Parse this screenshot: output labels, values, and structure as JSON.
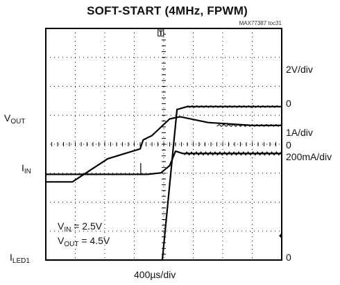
{
  "chart_data": {
    "type": "line",
    "title": "SOFT-START (4MHz, FPWM)",
    "tag": "MAX77387 toc31",
    "x_scale": "400µs/div",
    "traces": [
      {
        "name": "VOUT",
        "label_main": "V",
        "label_sub": "OUT",
        "scale": "2V/div",
        "zero": "0",
        "points": [
          [
            0,
            0
          ],
          [
            0.9,
            0
          ],
          [
            2.1,
            1.6
          ],
          [
            3.2,
            2.28
          ],
          [
            3.3,
            2.9
          ],
          [
            3.6,
            3.2
          ],
          [
            4.2,
            4.35
          ],
          [
            4.55,
            4.5
          ],
          [
            5.5,
            4.1
          ],
          [
            7,
            3.9
          ],
          [
            8,
            3.9
          ]
        ]
      },
      {
        "name": "IIN",
        "label_main": "I",
        "label_sub": "IN",
        "scale": "1A/div",
        "zero": "0",
        "points": [
          [
            0,
            0
          ],
          [
            3.3,
            0
          ],
          [
            3.45,
            0
          ],
          [
            3.9,
            0.05
          ],
          [
            4.2,
            0.3
          ],
          [
            4.4,
            0.8
          ],
          [
            4.65,
            0.72
          ],
          [
            6,
            0.72
          ],
          [
            8,
            0.72
          ]
        ]
      },
      {
        "name": "ILED1",
        "label_main": "I",
        "label_sub": "LED1",
        "scale": "200mA/div",
        "zero": "0",
        "points": [
          [
            0,
            0
          ],
          [
            3.95,
            0
          ],
          [
            4.45,
            5.2
          ],
          [
            4.8,
            5.3
          ],
          [
            8,
            5.3
          ]
        ]
      }
    ],
    "conditions": [
      {
        "main": "V",
        "sub": "IN",
        "value": " = 2.5V"
      },
      {
        "main": "V",
        "sub": "OUT",
        "value": " = 4.5V"
      }
    ],
    "trigger_marker": "T",
    "grid": {
      "divisions_x": 8,
      "divisions_y": 8
    }
  }
}
